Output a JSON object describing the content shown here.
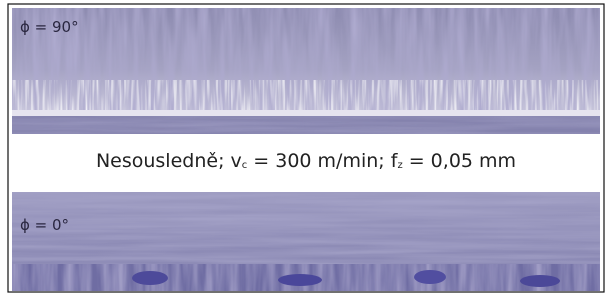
{
  "panels": [
    {
      "label": "ϕ = 90°"
    },
    {
      "label": "ϕ = 0°"
    }
  ],
  "caption": {
    "prefix": "Nesousledně; v",
    "sub1": "c",
    "middle": " = 300 m/min; f",
    "sub2": "z",
    "suffix": " = 0,05 mm"
  }
}
